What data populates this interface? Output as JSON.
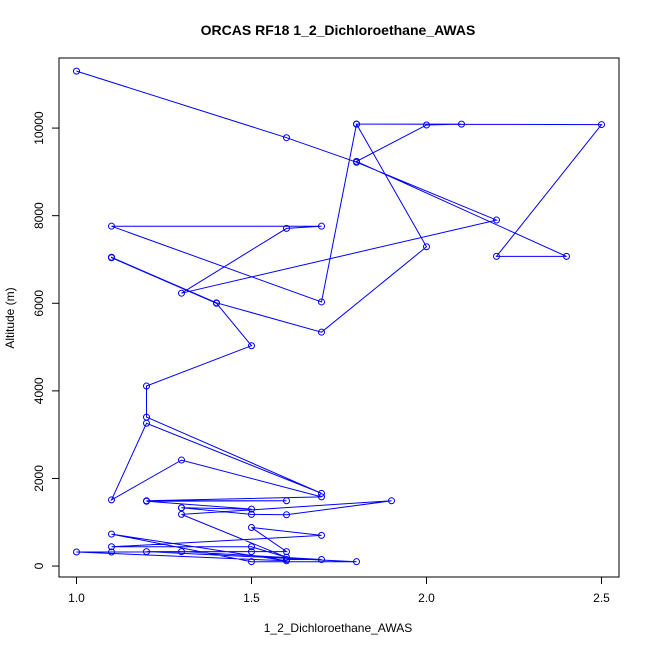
{
  "chart_data": {
    "type": "line",
    "title": "ORCAS RF18 1_2_Dichloroethane_AWAS",
    "xlabel": "1_2_Dichloroethane_AWAS",
    "ylabel": "Altitude (m)",
    "xlim": [
      0.95,
      2.55
    ],
    "ylim": [
      -250,
      11600
    ],
    "xticks": [
      1.0,
      1.5,
      2.0,
      2.5
    ],
    "xtick_labels": [
      "1.0",
      "1.5",
      "2.0",
      "2.5"
    ],
    "yticks": [
      0,
      2000,
      4000,
      6000,
      8000,
      10000
    ],
    "ytick_labels": [
      "0",
      "2000",
      "4000",
      "6000",
      "8000",
      "10000"
    ],
    "grid": false,
    "series": [
      {
        "color": "#0000ff",
        "marker": "open-circle",
        "x": [
          1.0,
          1.6,
          1.8,
          2.2,
          1.3,
          1.6,
          1.7,
          1.1,
          1.7,
          1.8,
          2.1,
          2.0,
          1.8,
          2.4,
          2.2,
          2.5,
          1.8,
          2.0,
          1.7,
          1.4,
          1.1,
          1.1,
          1.4,
          1.5,
          1.2,
          1.2,
          1.7,
          1.2,
          1.1,
          1.3,
          1.7,
          1.2,
          1.6,
          1.2,
          1.5,
          1.3,
          1.3,
          1.5,
          1.6,
          1.9,
          1.3,
          1.6,
          1.5,
          1.1,
          1.7,
          1.5,
          1.6,
          1.2,
          1.8,
          1.5,
          1.1,
          1.6,
          1.0,
          1.1,
          1.5,
          1.3,
          1.7,
          1.6
        ],
        "y": [
          11300,
          9780,
          9220,
          7900,
          6230,
          7710,
          7760,
          7760,
          6030,
          10090,
          10090,
          10070,
          9240,
          7070,
          7070,
          10080,
          10090,
          7290,
          5340,
          6010,
          7050,
          7040,
          6000,
          5030,
          4110,
          3400,
          1660,
          3260,
          1510,
          2420,
          1580,
          1490,
          1490,
          1480,
          1300,
          1330,
          1330,
          1180,
          1170,
          1490,
          1180,
          200,
          440,
          440,
          700,
          880,
          330,
          330,
          100,
          100,
          730,
          120,
          320,
          320,
          330,
          330,
          150,
          150
        ]
      }
    ]
  }
}
